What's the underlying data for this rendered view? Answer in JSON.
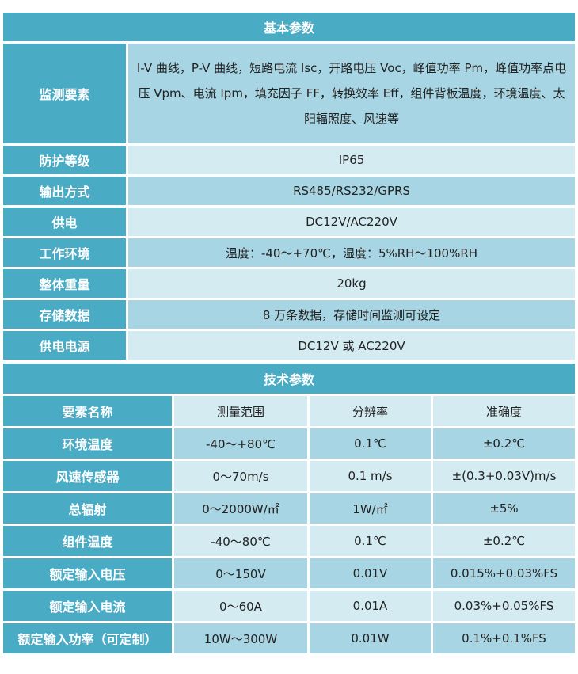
{
  "basic": {
    "title": "基本参数",
    "rows": [
      {
        "label": "监测要素",
        "value": "I-V 曲线，P-V 曲线，短路电流 Isc，开路电压 Voc，峰值功率 Pm，峰值功率点电压 Vpm、电流 Ipm，填充因子 FF，转换效率 Eff，组件背板温度，环境温度、太阳辐照度、风速等"
      },
      {
        "label": "防护等级",
        "value": "IP65"
      },
      {
        "label": "输出方式",
        "value": "RS485/RS232/GPRS"
      },
      {
        "label": "供电",
        "value": "DC12V/AC220V"
      },
      {
        "label": "工作环境",
        "value": "温度：-40～+70℃，湿度：5%RH～100%RH"
      },
      {
        "label": "整体重量",
        "value": "20kg"
      },
      {
        "label": "存储数据",
        "value": "8 万条数据，存储时间监测可设定"
      },
      {
        "label": "供电电源",
        "value": "DC12V 或 AC220V"
      }
    ]
  },
  "tech": {
    "title": "技术参数",
    "headers": [
      "要素名称",
      "测量范围",
      "分辨率",
      "准确度"
    ],
    "rows": [
      [
        "环境温度",
        "-40～+80℃",
        "0.1℃",
        "±0.2℃"
      ],
      [
        "风速传感器",
        "0～70m/s",
        "0.1 m/s",
        "±(0.3+0.03V)m/s"
      ],
      [
        "总辐射",
        "0～2000W/㎡",
        "1W/㎡",
        "±5%"
      ],
      [
        "组件温度",
        "-40～80℃",
        "0.1℃",
        "±0.2℃"
      ],
      [
        "额定输入电压",
        "0～150V",
        "0.01V",
        "0.015%+0.03%FS"
      ],
      [
        "额定输入电流",
        "0～60A",
        "0.01A",
        "0.03%+0.05%FS"
      ],
      [
        "额定输入功率（可定制）",
        "10W～300W",
        "0.01W",
        "0.1%+0.1%FS"
      ]
    ]
  }
}
